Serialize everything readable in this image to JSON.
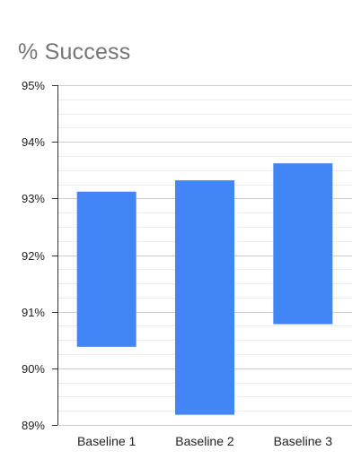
{
  "chart_data": {
    "type": "bar",
    "title": "% Success",
    "xlabel": "",
    "ylabel": "",
    "ylim": [
      89,
      95
    ],
    "yticks": [
      89,
      90,
      91,
      92,
      93,
      94,
      95
    ],
    "ytick_labels": [
      "89%",
      "90%",
      "91%",
      "92%",
      "93%",
      "94%",
      "95%"
    ],
    "minor_gridlines_per_major": 3,
    "grid": true,
    "legend": "none",
    "categories": [
      "Baseline 1",
      "Baseline 2",
      "Baseline 3"
    ],
    "ranges": [
      {
        "low": 90.38,
        "high": 93.12
      },
      {
        "low": 89.18,
        "high": 93.32
      },
      {
        "low": 90.78,
        "high": 93.62
      }
    ],
    "bar_color": "#4285F4"
  }
}
